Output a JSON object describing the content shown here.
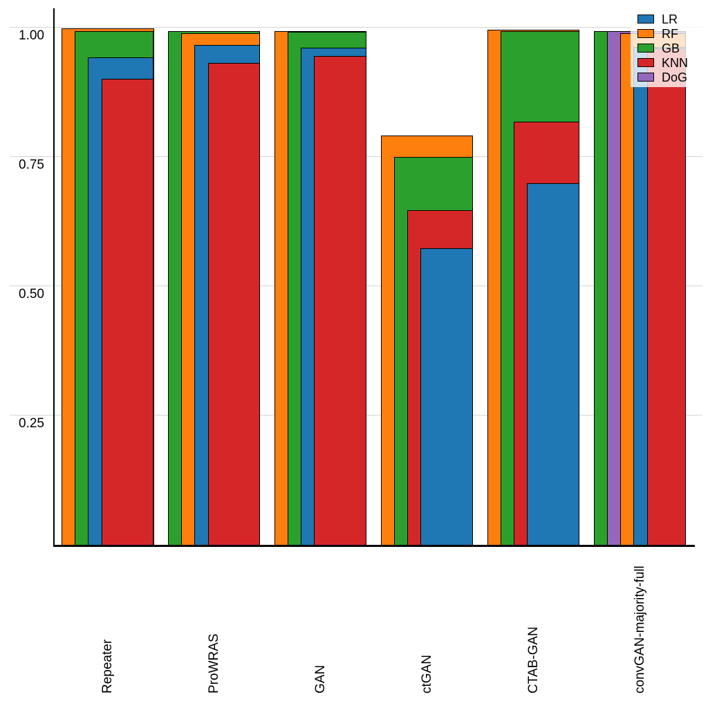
{
  "chart_data": {
    "type": "bar",
    "variant": "grouped-overlapping: within each category the bars are sorted descending by value and overlaid front-to-back with an increasing left offset; all bars in a group share the same right edge and baseline 0",
    "title": "",
    "xlabel": "",
    "ylabel": "",
    "categories": [
      "Repeater",
      "ProWRAS",
      "GAN",
      "ctGAN",
      "CTAB-GAN",
      "convGAN-majority-full"
    ],
    "series": [
      {
        "name": "LR",
        "color": "#1f77b4",
        "values": [
          0.944,
          0.968,
          0.963,
          0.575,
          0.7,
          0.964
        ]
      },
      {
        "name": "RF",
        "color": "#ff7f0e",
        "values": [
          1.0,
          0.99,
          0.995,
          0.793,
          0.997,
          0.99
        ]
      },
      {
        "name": "GB",
        "color": "#2ca02c",
        "values": [
          0.995,
          0.995,
          0.993,
          0.752,
          0.994,
          0.995
        ]
      },
      {
        "name": "KNN",
        "color": "#d62728",
        "values": [
          0.902,
          0.933,
          0.946,
          0.649,
          0.82,
          0.961
        ]
      },
      {
        "name": "DoG",
        "color": "#9467bd",
        "values": [
          null,
          null,
          null,
          null,
          null,
          0.994
        ]
      }
    ],
    "y_ticks": {
      "labels": [
        "1.00",
        "0.75",
        "0.50",
        "0.25"
      ],
      "values": [
        1.0,
        0.75,
        0.5,
        0.25
      ]
    },
    "ylim": [
      0,
      1.04
    ],
    "grid": true,
    "legend": {
      "position": "top-right",
      "entries": [
        "LR",
        "RF",
        "GB",
        "KNN",
        "DoG"
      ]
    },
    "colors": {
      "gridline": "#d4d4d4",
      "axis": "#000000",
      "bar_border": "#000000",
      "background": "#ffffff"
    }
  }
}
